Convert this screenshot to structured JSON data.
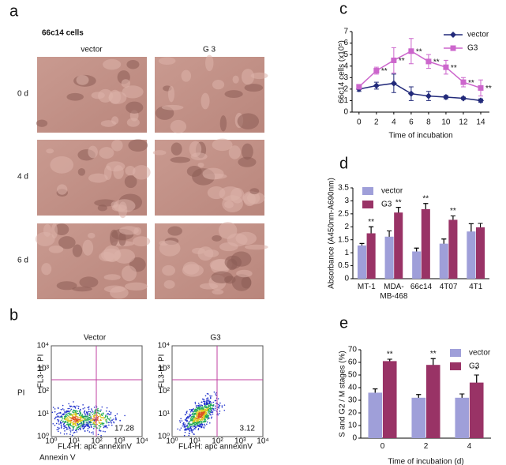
{
  "panel_labels": [
    "a",
    "b",
    "c",
    "d",
    "e"
  ],
  "micrographs": {
    "title": "66c14 cells",
    "columns": [
      "vector",
      "G 3"
    ],
    "rows": [
      "0 d",
      "4 d",
      "6 d"
    ]
  },
  "flow": {
    "columns": [
      "Vector",
      "G3"
    ],
    "y_label": "PI",
    "x_label": "Annexin V",
    "plot_y_label": "FL3-H: PI",
    "plot_x_label": "FL4-H: apc annexinV",
    "ticks": [
      {
        "value": 1,
        "label": "10⁰"
      },
      {
        "value": 10,
        "label": "10¹"
      },
      {
        "value": 100,
        "label": "10²"
      },
      {
        "value": 1000,
        "label": "10³"
      },
      {
        "value": 10000,
        "label": "10⁴"
      }
    ],
    "log_scale": true,
    "quadrant_values": [
      17.28,
      3.12
    ]
  },
  "chart_data": [
    {
      "type": "line",
      "y_label": "66c14 cells (x10⁵)",
      "x_label": "Time of incubation",
      "xlim": [
        -0.8,
        15
      ],
      "xticks": [
        0,
        2,
        4,
        6,
        8,
        10,
        12,
        14
      ],
      "ylim": [
        0,
        7
      ],
      "yticks": [
        0,
        1,
        2,
        3,
        4,
        5,
        6,
        7
      ],
      "legend": "upper right",
      "series": [
        {
          "name": "vector",
          "color": "#222a7a",
          "marker": "diamond",
          "x": [
            0,
            2,
            4,
            6,
            8,
            10,
            12,
            14
          ],
          "values": [
            2.0,
            2.3,
            2.5,
            1.6,
            1.4,
            1.3,
            1.2,
            1.0
          ],
          "errors": [
            0.2,
            0.3,
            0.8,
            0.6,
            0.4,
            0.15,
            0.1,
            0.15
          ],
          "annotations": [
            null,
            null,
            null,
            null,
            null,
            null,
            null,
            null
          ]
        },
        {
          "name": "G3",
          "color": "#cc66cc",
          "marker": "square",
          "x": [
            0,
            2,
            4,
            6,
            8,
            10,
            12,
            14
          ],
          "values": [
            2.2,
            3.6,
            4.5,
            5.3,
            4.4,
            3.9,
            2.6,
            2.1
          ],
          "errors": [
            0.2,
            0.3,
            1.1,
            1.1,
            0.6,
            0.6,
            0.4,
            0.7
          ],
          "annotations": [
            null,
            "**",
            "**",
            "**",
            "**",
            "**",
            "**",
            "**"
          ]
        }
      ]
    },
    {
      "type": "bar",
      "y_label": "Absorbance (A450nm-A690nm)",
      "categories": [
        "MT-1",
        "MDA-MB-468",
        "66c14",
        "4T07",
        "4T1"
      ],
      "ylim": [
        0,
        3.5
      ],
      "yticks": [
        0,
        0.5,
        1,
        1.5,
        2,
        2.5,
        3,
        3.5
      ],
      "legend": "upper left",
      "series": [
        {
          "name": "vector",
          "color": "#9f9fd9",
          "values": [
            1.28,
            1.62,
            1.05,
            1.35,
            1.82
          ],
          "errors": [
            0.08,
            0.22,
            0.13,
            0.18,
            0.3
          ],
          "annotations": [
            null,
            null,
            null,
            null,
            null
          ]
        },
        {
          "name": "G3",
          "color": "#993366",
          "values": [
            1.75,
            2.55,
            2.68,
            2.27,
            1.98
          ],
          "errors": [
            0.25,
            0.2,
            0.22,
            0.15,
            0.15
          ],
          "annotations": [
            "**",
            "**",
            "**",
            "**",
            null
          ]
        }
      ]
    },
    {
      "type": "bar",
      "y_label": "S and G2 / M stages (%)",
      "x_label": "Time of incubation (d)",
      "categories": [
        "0",
        "2",
        "4"
      ],
      "ylim": [
        0,
        70
      ],
      "yticks": [
        0,
        10,
        20,
        30,
        40,
        50,
        60,
        70
      ],
      "legend": "upper right",
      "series": [
        {
          "name": "vector",
          "color": "#9f9fd9",
          "values": [
            36,
            32,
            32
          ],
          "errors": [
            3,
            2.5,
            3
          ],
          "annotations": [
            null,
            null,
            null
          ]
        },
        {
          "name": "G3",
          "color": "#993366",
          "values": [
            61,
            58,
            44
          ],
          "errors": [
            1.5,
            5,
            6
          ],
          "annotations": [
            "**",
            "**",
            "*"
          ]
        }
      ]
    }
  ]
}
